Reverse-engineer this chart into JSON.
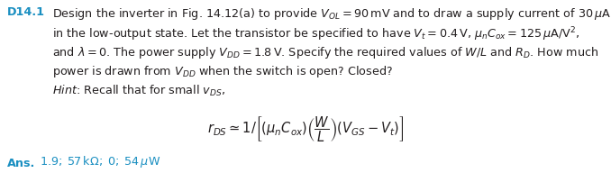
{
  "problem_label": "D14.1",
  "label_color": "#1a8fc1",
  "ans_color": "#1a8fc1",
  "text_color": "#231f20",
  "formula_color": "#231f20",
  "bg_color": "#ffffff",
  "font_size_main": 9.2,
  "font_size_formula": 10.5,
  "font_size_ans": 9.2,
  "lines": [
    "Design the inverter in Fig. 14.12(a) to provide $V_{OL}=90\\,\\mathrm{mV}$ and to draw a supply current of $30\\,\\mu\\mathrm{A}$",
    "in the low-output state. Let the transistor be specified to have $V_t=0.4\\,\\mathrm{V}$, $\\mu_n C_{ox}=125\\,\\mu\\mathrm{A/V}^2$,",
    "and $\\lambda=0$. The power supply $V_{DD}=1.8\\,\\mathrm{V}$. Specify the required values of $W/L$ and $R_D$. How much",
    "power is drawn from $V_{DD}$ when the switch is open? Closed?"
  ],
  "hint_text": "$\\mathit{Hint}$: Recall that for small $v_{DS}$,",
  "formula_text": "$r_{DS}\\simeq 1/\\left[\\left(\\mu_n C_{ox}\\right)\\left(\\dfrac{W}{L}\\right)\\left(V_{GS}-V_t\\right)\\right]$",
  "ans_label": "Ans.",
  "ans_values": "$1.9;\\; 57\\,\\mathrm{k\\Omega};\\; 0;\\; 54\\,\\mu\\mathrm{W}$"
}
